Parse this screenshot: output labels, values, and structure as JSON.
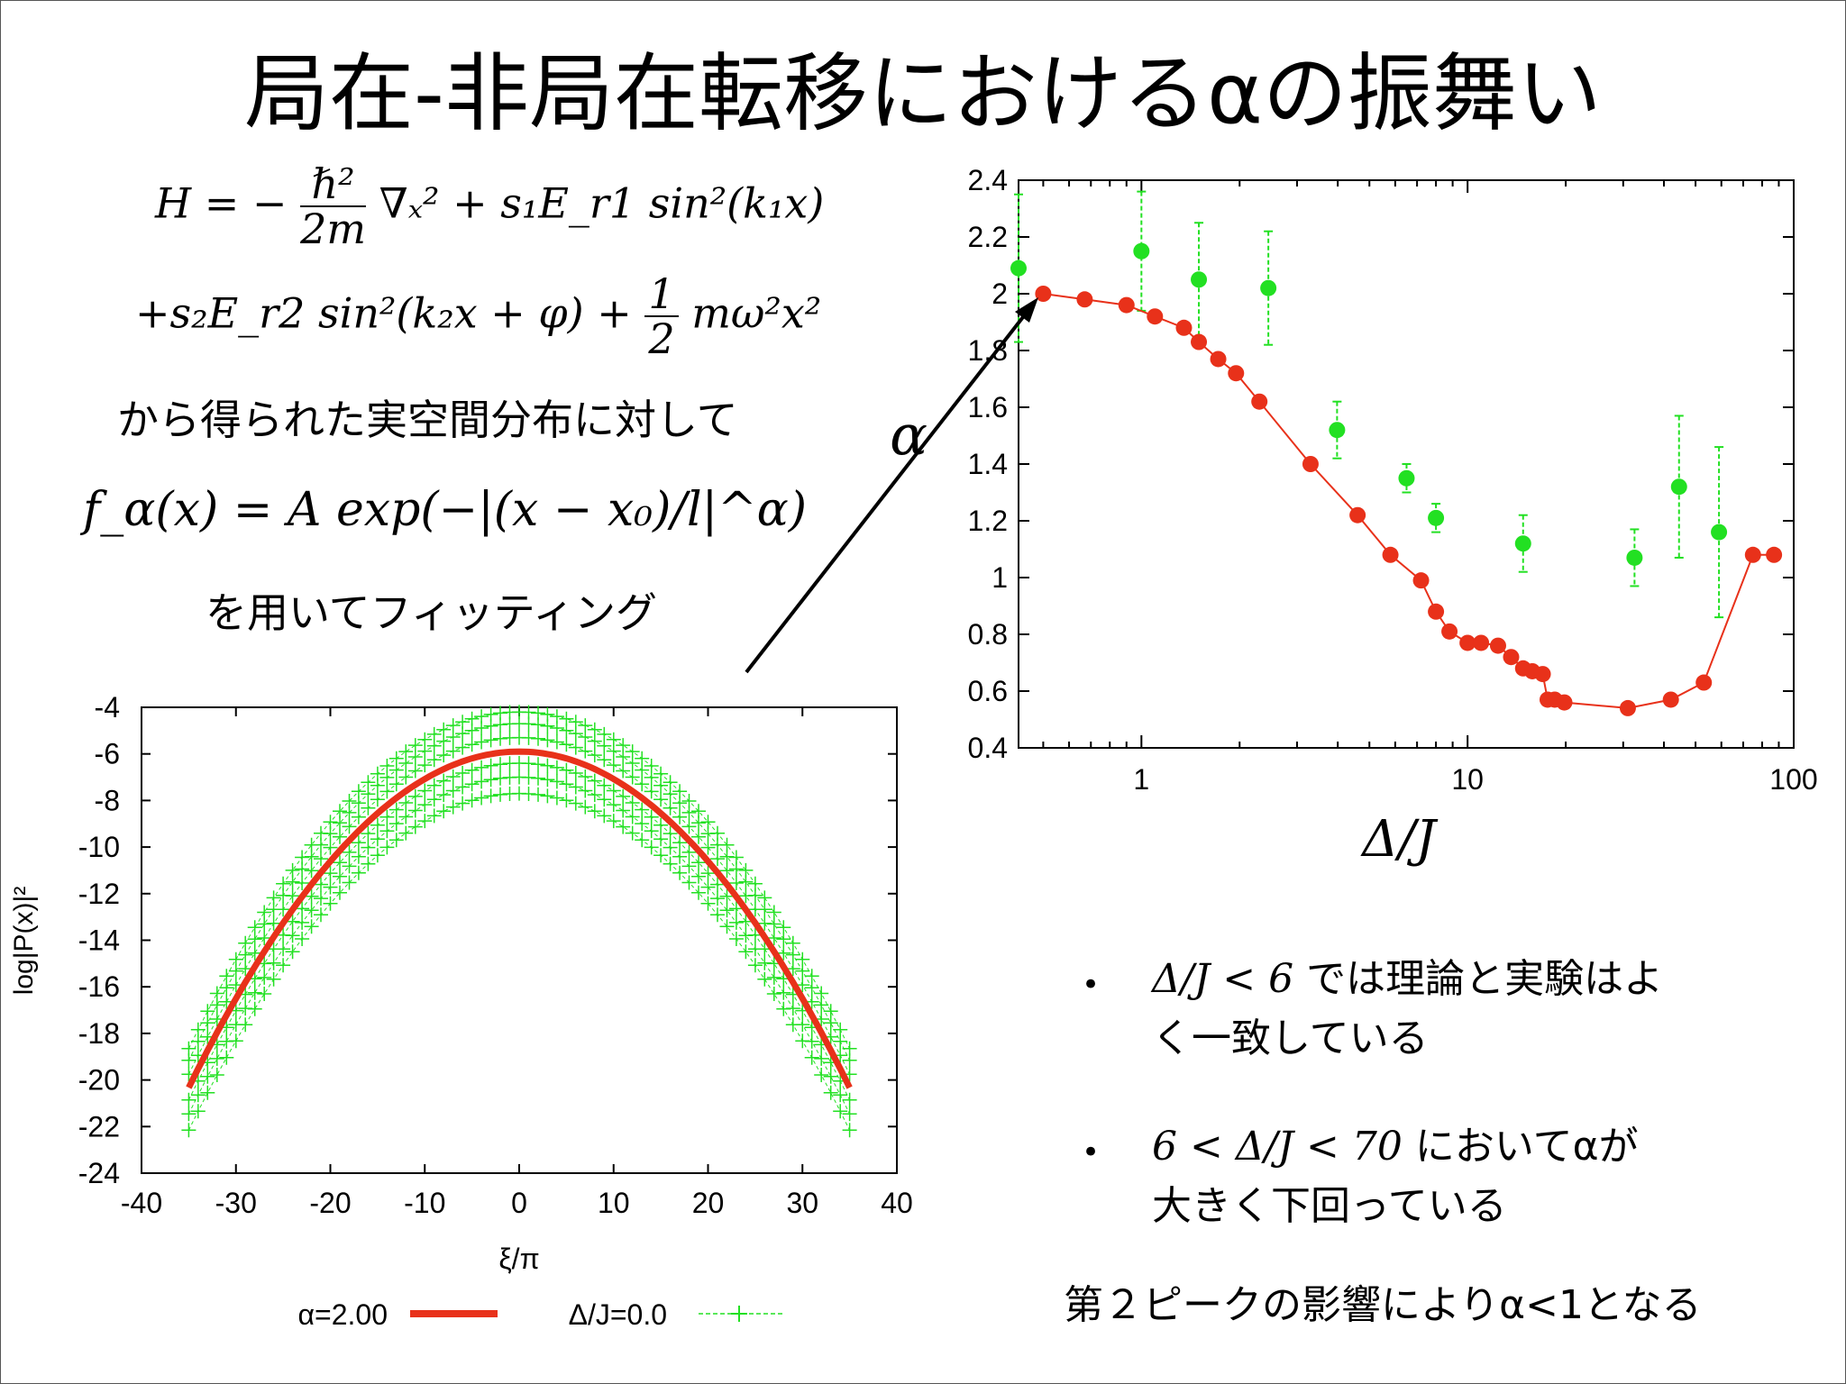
{
  "title": "局在-非局在転移におけるαの振舞い",
  "equations": {
    "h_line1_pre": "H = −",
    "h_line1_num": "ℏ²",
    "h_line1_den": "2m",
    "h_line1_post": "∇ₓ² + s₁E_r1 sin²(k₁x)",
    "h_line2_pre": "+s₂E_r2 sin²(k₂x + φ) +",
    "h_line2_num": "1",
    "h_line2_den": "2",
    "h_line2_post": "mω²x²",
    "fit": "f_α(x) = A exp(−|(x − x₀)/l|^α)"
  },
  "text": {
    "from_distribution": "から得られた実空間分布に対して",
    "fitting": "を用いてフィッティング",
    "bullet1_math": "Δ/J < 6",
    "bullet1_text": "では理論と実験はよ",
    "bullet1_line2": "く一致している",
    "bullet2_math": "6 < Δ/J < 70",
    "bullet2_text": "においてαが",
    "bullet2_line2": "大きく下回っている",
    "note": "第２ピークの影響によりα<1となる",
    "bullet_mark": "•"
  },
  "colors": {
    "red": "#e8311a",
    "green": "#22e022",
    "arrow": "#000000"
  },
  "chart_data": [
    {
      "type": "scatter",
      "xscale": "log",
      "xlim": [
        0.42,
        100
      ],
      "ylim": [
        0.4,
        2.4
      ],
      "xlabel": "Δ/J",
      "ylabel": "α",
      "yticks": [
        "0.4",
        "0.6",
        "0.8",
        "1",
        "1.2",
        "1.4",
        "1.6",
        "1.8",
        "2",
        "2.2",
        "2.4"
      ],
      "xticks": [
        "1",
        "10",
        "100"
      ],
      "series": [
        {
          "style": "line+points",
          "color": "#e8311a",
          "x": [
            0.5,
            0.67,
            0.9,
            1.1,
            1.35,
            1.5,
            1.72,
            1.95,
            2.3,
            3.3,
            4.6,
            5.8,
            7.2,
            8.0,
            8.8,
            10.0,
            11.0,
            12.4,
            13.6,
            14.8,
            15.8,
            17.0,
            17.6,
            18.5,
            19.8,
            31.0,
            42.0,
            53.0,
            75.0,
            87.0
          ],
          "y": [
            2.0,
            1.98,
            1.96,
            1.92,
            1.88,
            1.83,
            1.77,
            1.72,
            1.62,
            1.4,
            1.22,
            1.08,
            0.99,
            0.88,
            0.81,
            0.77,
            0.77,
            0.76,
            0.72,
            0.68,
            0.67,
            0.66,
            0.57,
            0.57,
            0.56,
            0.54,
            0.57,
            0.63,
            1.08,
            1.08
          ]
        },
        {
          "style": "points+errorbars",
          "color": "#22e022",
          "x": [
            0.42,
            1.0,
            1.5,
            2.45,
            3.98,
            6.5,
            8.0,
            14.8,
            32.5,
            44.5,
            59.0
          ],
          "y": [
            2.09,
            2.15,
            2.05,
            2.02,
            1.52,
            1.35,
            1.21,
            1.12,
            1.07,
            1.32,
            1.16
          ],
          "err": [
            0.26,
            0.21,
            0.2,
            0.2,
            0.1,
            0.05,
            0.05,
            0.1,
            0.1,
            0.25,
            0.3
          ]
        }
      ]
    },
    {
      "type": "line",
      "xlim": [
        -40,
        40
      ],
      "ylim": [
        -24,
        -4
      ],
      "xlabel": "ξ/π",
      "ylabel": "log|P(x)|²",
      "xticks": [
        "-40",
        "-30",
        "-20",
        "-10",
        "0",
        "10",
        "20",
        "30",
        "40"
      ],
      "yticks": [
        "-4",
        "-6",
        "-8",
        "-10",
        "-12",
        "-14",
        "-16",
        "-18",
        "-20",
        "-22",
        "-24"
      ],
      "x_range": [
        -35,
        35
      ],
      "series": [
        {
          "name": "α=2.00",
          "color": "#e8311a",
          "peak": -5.9,
          "curvature": 0.01178,
          "style": "thick-line"
        },
        {
          "name": "Δ/J=0.0",
          "color": "#22e022",
          "peaks": [
            -4.2,
            -4.7,
            -5.3,
            -6.4,
            -7.0,
            -7.7
          ],
          "curvature": 0.0118,
          "style": "plus-markers"
        }
      ]
    }
  ]
}
